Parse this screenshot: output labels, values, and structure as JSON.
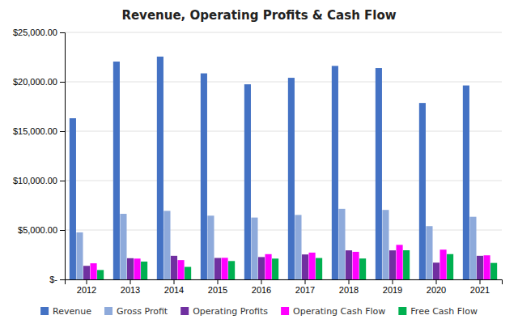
{
  "chart_data": {
    "type": "bar",
    "title": "Revenue, Operating Profits & Cash Flow",
    "categories": [
      "2012",
      "2013",
      "2014",
      "2015",
      "2016",
      "2017",
      "2018",
      "2019",
      "2020",
      "2021"
    ],
    "series": [
      {
        "name": "Revenue",
        "color": "#4472c4",
        "values": [
          16311,
          22046,
          22552,
          20855,
          19747,
          20404,
          21609,
          21390,
          17858,
          19628
        ]
      },
      {
        "name": "Gross Profit",
        "color": "#8eaadb",
        "values": [
          4762,
          6637,
          6939,
          6452,
          6261,
          6525,
          7144,
          7033,
          5391,
          6337
        ]
      },
      {
        "name": "Operating Profits",
        "color": "#7030a0",
        "values": [
          1373,
          2146,
          2390,
          2173,
          2264,
          2526,
          2940,
          2939,
          1695,
          2390
        ]
      },
      {
        "name": "Operating Cash Flow",
        "color": "#ff00ff",
        "values": [
          1630,
          2107,
          1956,
          2186,
          2557,
          2712,
          2792,
          3497,
          3013,
          2438
        ]
      },
      {
        "name": "Free Cash Flow",
        "color": "#00b050",
        "values": [
          952,
          1805,
          1268,
          1861,
          2107,
          2166,
          2115,
          2949,
          2562,
          1667
        ]
      }
    ],
    "ylim": [
      0,
      25000
    ],
    "yticks": [
      {
        "value": 0,
        "label": "$-"
      },
      {
        "value": 5000,
        "label": "$5,000.00"
      },
      {
        "value": 10000,
        "label": "$10,000.00"
      },
      {
        "value": 15000,
        "label": "$15,000.00"
      },
      {
        "value": 20000,
        "label": "$20,000.00"
      },
      {
        "value": 25000,
        "label": "$25,000.00"
      }
    ],
    "grid": true,
    "legend": "bottom"
  }
}
